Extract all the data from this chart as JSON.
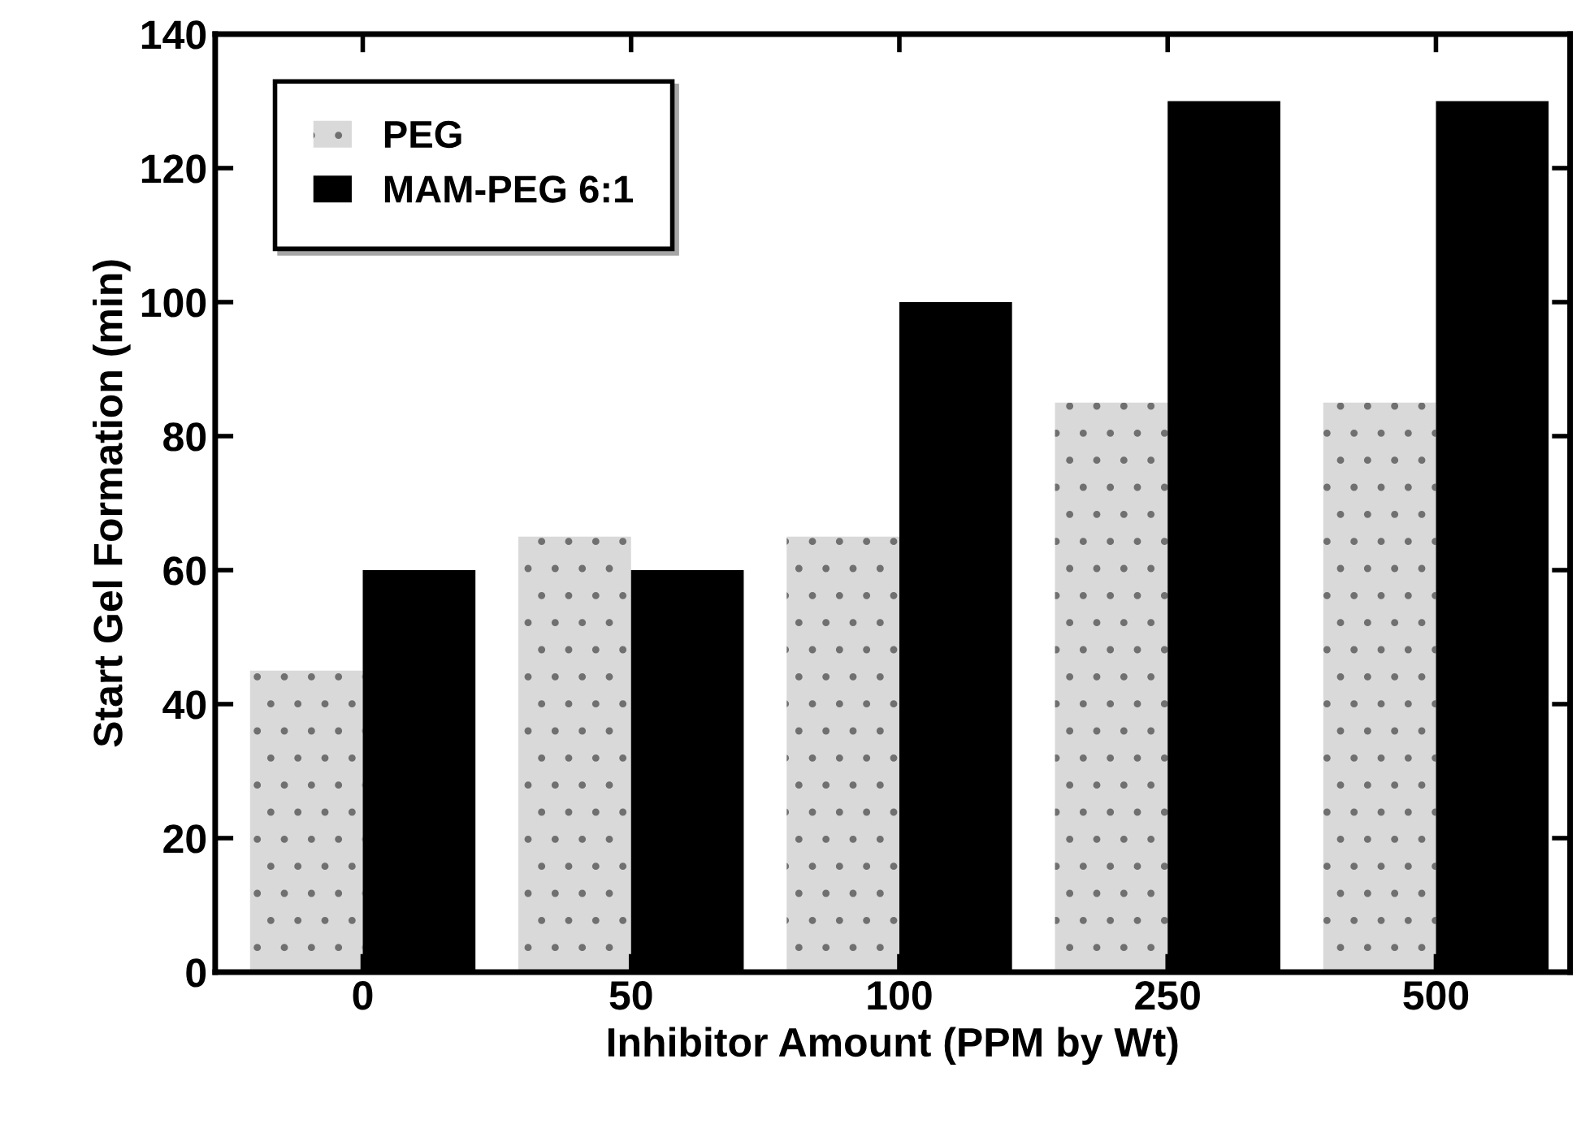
{
  "chart_data": {
    "type": "bar",
    "xlabel": "Inhibitor Amount (PPM by Wt)",
    "ylabel": "Start Gel Formation (min)",
    "categories": [
      "0",
      "50",
      "100",
      "250",
      "500"
    ],
    "series": [
      {
        "name": "PEG",
        "color": "#d9d9d9",
        "values": [
          45,
          65,
          65,
          85,
          85
        ]
      },
      {
        "name": "MAM-PEG 6:1",
        "color": "#000000",
        "values": [
          60,
          60,
          100,
          130,
          130
        ]
      }
    ],
    "ylim": [
      0,
      140
    ],
    "yticks": [
      0,
      20,
      40,
      60,
      80,
      100,
      120,
      140
    ],
    "grid": false,
    "legend": "top left"
  }
}
